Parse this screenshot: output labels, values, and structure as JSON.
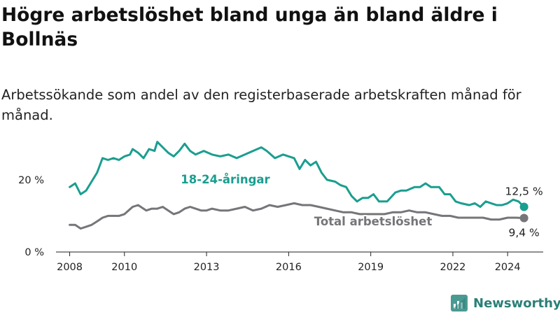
{
  "header": {
    "title": "Högre arbetslöshet bland unga än bland äldre i Bollnäs",
    "subtitle": "Arbetssökande som andel av den registerbaserade arbetskraften månad för månad."
  },
  "branding": {
    "name": "Newsworthy"
  },
  "colors": {
    "youth": "#1a9e8f",
    "total": "#75757a",
    "axis": "#222222",
    "brand": "#2b7f78"
  },
  "chart_data": {
    "type": "line",
    "xlim": [
      2007.5,
      2025.3
    ],
    "ylim": [
      0,
      32
    ],
    "x_ticks": [
      {
        "value": 2008,
        "label": "2008"
      },
      {
        "value": 2010,
        "label": "2010"
      },
      {
        "value": 2013,
        "label": "2013"
      },
      {
        "value": 2016,
        "label": "2016"
      },
      {
        "value": 2019,
        "label": "2019"
      },
      {
        "value": 2022,
        "label": "2022"
      },
      {
        "value": 2024,
        "label": "2024"
      }
    ],
    "y_ticks": [
      {
        "value": 0,
        "label": "0 %"
      },
      {
        "value": 20,
        "label": "20 %"
      }
    ],
    "series": [
      {
        "name": "18-24-åringar",
        "end_label": "12,5 %",
        "points": [
          [
            2008.0,
            18
          ],
          [
            2008.2,
            19
          ],
          [
            2008.4,
            16
          ],
          [
            2008.6,
            17
          ],
          [
            2008.8,
            19.5
          ],
          [
            2009.0,
            22
          ],
          [
            2009.2,
            26
          ],
          [
            2009.4,
            25.5
          ],
          [
            2009.6,
            26
          ],
          [
            2009.8,
            25.5
          ],
          [
            2010.0,
            26.5
          ],
          [
            2010.2,
            27
          ],
          [
            2010.3,
            28.5
          ],
          [
            2010.5,
            27.5
          ],
          [
            2010.7,
            26
          ],
          [
            2010.9,
            28.5
          ],
          [
            2011.1,
            28
          ],
          [
            2011.2,
            30.5
          ],
          [
            2011.4,
            29
          ],
          [
            2011.6,
            27.5
          ],
          [
            2011.8,
            26.5
          ],
          [
            2012.0,
            28
          ],
          [
            2012.2,
            30
          ],
          [
            2012.4,
            28
          ],
          [
            2012.6,
            27
          ],
          [
            2012.9,
            28
          ],
          [
            2013.2,
            27
          ],
          [
            2013.5,
            26.5
          ],
          [
            2013.8,
            27
          ],
          [
            2014.1,
            26
          ],
          [
            2014.4,
            27
          ],
          [
            2014.7,
            28
          ],
          [
            2015.0,
            29
          ],
          [
            2015.2,
            28
          ],
          [
            2015.5,
            26
          ],
          [
            2015.8,
            27
          ],
          [
            2016.0,
            26.5
          ],
          [
            2016.2,
            26
          ],
          [
            2016.4,
            23
          ],
          [
            2016.6,
            25.5
          ],
          [
            2016.8,
            24
          ],
          [
            2017.0,
            25
          ],
          [
            2017.2,
            22
          ],
          [
            2017.4,
            20
          ],
          [
            2017.7,
            19.5
          ],
          [
            2017.9,
            18.5
          ],
          [
            2018.1,
            18
          ],
          [
            2018.3,
            15.5
          ],
          [
            2018.5,
            14
          ],
          [
            2018.7,
            15
          ],
          [
            2018.9,
            15
          ],
          [
            2019.1,
            16
          ],
          [
            2019.3,
            14
          ],
          [
            2019.6,
            14
          ],
          [
            2019.9,
            16.5
          ],
          [
            2020.1,
            17
          ],
          [
            2020.3,
            17
          ],
          [
            2020.6,
            18
          ],
          [
            2020.8,
            18
          ],
          [
            2021.0,
            19
          ],
          [
            2021.2,
            18
          ],
          [
            2021.5,
            18
          ],
          [
            2021.7,
            16
          ],
          [
            2021.9,
            16
          ],
          [
            2022.1,
            14
          ],
          [
            2022.3,
            13.5
          ],
          [
            2022.6,
            13
          ],
          [
            2022.8,
            13.5
          ],
          [
            2023.0,
            12.5
          ],
          [
            2023.2,
            14
          ],
          [
            2023.4,
            13.5
          ],
          [
            2023.6,
            13
          ],
          [
            2023.8,
            13
          ],
          [
            2024.0,
            13.5
          ],
          [
            2024.2,
            14.5
          ],
          [
            2024.4,
            14
          ],
          [
            2024.6,
            12.5
          ]
        ]
      },
      {
        "name": "Total arbetslöshet",
        "end_label": "9,4 %",
        "points": [
          [
            2008.0,
            7.5
          ],
          [
            2008.2,
            7.5
          ],
          [
            2008.4,
            6.5
          ],
          [
            2008.6,
            7
          ],
          [
            2008.8,
            7.5
          ],
          [
            2009.0,
            8.5
          ],
          [
            2009.2,
            9.5
          ],
          [
            2009.4,
            10
          ],
          [
            2009.6,
            10
          ],
          [
            2009.8,
            10
          ],
          [
            2010.0,
            10.5
          ],
          [
            2010.3,
            12.5
          ],
          [
            2010.5,
            13
          ],
          [
            2010.8,
            11.5
          ],
          [
            2011.0,
            12
          ],
          [
            2011.2,
            12
          ],
          [
            2011.4,
            12.5
          ],
          [
            2011.6,
            11.5
          ],
          [
            2011.8,
            10.5
          ],
          [
            2012.0,
            11
          ],
          [
            2012.2,
            12
          ],
          [
            2012.4,
            12.5
          ],
          [
            2012.6,
            12
          ],
          [
            2012.8,
            11.5
          ],
          [
            2013.0,
            11.5
          ],
          [
            2013.2,
            12
          ],
          [
            2013.5,
            11.5
          ],
          [
            2013.8,
            11.5
          ],
          [
            2014.1,
            12
          ],
          [
            2014.4,
            12.5
          ],
          [
            2014.7,
            11.5
          ],
          [
            2015.0,
            12
          ],
          [
            2015.3,
            13
          ],
          [
            2015.6,
            12.5
          ],
          [
            2015.9,
            13
          ],
          [
            2016.2,
            13.5
          ],
          [
            2016.5,
            13
          ],
          [
            2016.8,
            13
          ],
          [
            2017.1,
            12.5
          ],
          [
            2017.4,
            12
          ],
          [
            2017.7,
            11.5
          ],
          [
            2018.0,
            11
          ],
          [
            2018.3,
            11
          ],
          [
            2018.6,
            10.5
          ],
          [
            2018.9,
            10.5
          ],
          [
            2019.2,
            10.5
          ],
          [
            2019.5,
            10.5
          ],
          [
            2019.8,
            11
          ],
          [
            2020.1,
            11
          ],
          [
            2020.4,
            11.5
          ],
          [
            2020.7,
            11
          ],
          [
            2021.0,
            11
          ],
          [
            2021.3,
            10.5
          ],
          [
            2021.6,
            10
          ],
          [
            2021.9,
            10
          ],
          [
            2022.2,
            9.5
          ],
          [
            2022.5,
            9.5
          ],
          [
            2022.8,
            9.5
          ],
          [
            2023.1,
            9.5
          ],
          [
            2023.4,
            9
          ],
          [
            2023.7,
            9
          ],
          [
            2024.0,
            9.5
          ],
          [
            2024.3,
            9.5
          ],
          [
            2024.6,
            9.4
          ]
        ]
      }
    ]
  }
}
